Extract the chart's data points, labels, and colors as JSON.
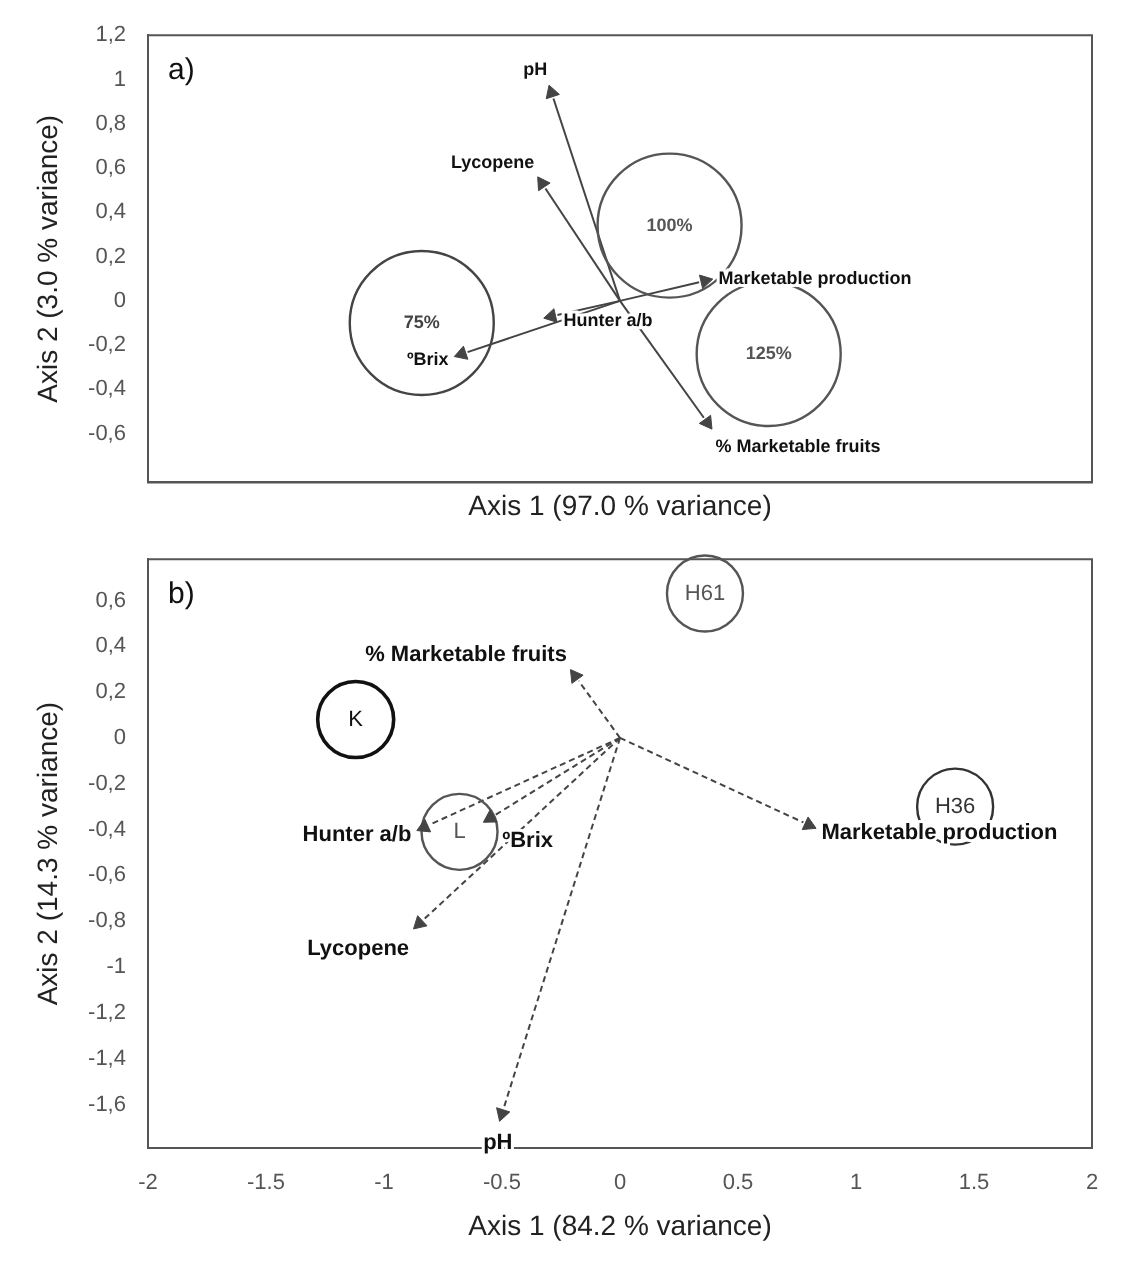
{
  "chart_data": [
    {
      "type": "scatter",
      "annotations": [
        "a)",
        {
          "text": "pH",
          "x": -0.29,
          "y": 0.94
        },
        {
          "text": "Lycopene",
          "x": -0.33,
          "y": 0.53
        },
        {
          "text": "Marketable production",
          "x": 0.36,
          "y": 0.09
        },
        {
          "text": "Hunter a/b",
          "x": -0.29,
          "y": -0.07
        },
        {
          "text": "ºBrix",
          "x": -0.67,
          "y": -0.24
        },
        {
          "text": "% Marketable fruits",
          "x": 0.37,
          "y": -0.55
        }
      ],
      "xlabel": "Axis 1 (97.0 % variance)",
      "ylabel": "Axis 2 (3.0 % variance)",
      "xlim": [
        -2,
        2
      ],
      "ylim": [
        -0.82,
        1.2
      ],
      "yticks": [
        {
          "value": 1.2,
          "label": "1,2"
        },
        1,
        {
          "value": 0.8,
          "label": "0,8"
        },
        {
          "value": 0.6,
          "label": "0,6"
        },
        {
          "value": 0.4,
          "label": "0,4"
        },
        {
          "value": 0.2,
          "label": "0,2"
        },
        0,
        {
          "value": -0.2,
          "label": "-0,2"
        },
        {
          "value": -0.4,
          "label": "-0,4"
        },
        {
          "value": -0.6,
          "label": "-0,6"
        }
      ],
      "tick_labels": "y",
      "grid": false,
      "series": [
        {
          "color": "#444444",
          "x": [
            -0.29,
            -0.33,
            0.36,
            -0.29,
            -0.67,
            0.37
          ],
          "values": [
            0.94,
            0.53,
            0.09,
            -0.07,
            -0.24,
            -0.55
          ],
          "marker": "triangle"
        },
        {
          "name": "75%",
          "color": "#444444",
          "x": [
            -0.84
          ],
          "values": [
            -0.1
          ],
          "marker": "circle"
        },
        {
          "name": "100%",
          "color": "#555555",
          "x": [
            0.21
          ],
          "values": [
            0.34
          ],
          "marker": "circle"
        },
        {
          "name": "125%",
          "color": "#555555",
          "x": [
            0.63
          ],
          "values": [
            -0.24
          ],
          "marker": "circle"
        }
      ]
    },
    {
      "type": "scatter",
      "annotations": [
        "b)",
        {
          "text": "% Marketable fruits",
          "x": -0.19,
          "y": 0.27
        },
        {
          "text": "Hunter a/b",
          "x": -0.83,
          "y": -0.39
        },
        {
          "text": "ºBrix",
          "x": -0.55,
          "y": -0.35
        },
        {
          "text": "Lycopene",
          "x": -0.85,
          "y": -0.81
        },
        {
          "text": "pH",
          "x": -0.5,
          "y": -1.64
        },
        {
          "text": "Marketable production",
          "x": 0.8,
          "y": -0.38
        }
      ],
      "xlabel": "Axis 1 (84.2 % variance)",
      "ylabel": "Axis 2 (14.3 % variance)",
      "xlim": [
        -2,
        2
      ],
      "xticks": [
        -2,
        -1.5,
        -1,
        -0.5,
        0,
        0.5,
        1,
        1.5,
        2
      ],
      "ylim": [
        -1.79,
        0.78
      ],
      "yticks": [
        {
          "value": 0.6,
          "label": "0,6"
        },
        {
          "value": 0.4,
          "label": "0,4"
        },
        {
          "value": 0.2,
          "label": "0,2"
        },
        0,
        {
          "value": -0.2,
          "label": "-0,2"
        },
        {
          "value": -0.4,
          "label": "-0,4"
        },
        {
          "value": -0.6,
          "label": "-0,6"
        },
        {
          "value": -0.8,
          "label": "-0,8"
        },
        -1,
        {
          "value": -1.2,
          "label": "-1,2"
        },
        {
          "value": -1.4,
          "label": "-1,4"
        },
        {
          "value": -1.6,
          "label": "-1,6"
        }
      ],
      "grid": false,
      "series": [
        {
          "color": "#444444",
          "x": [
            -0.19,
            -0.83,
            -0.55,
            -0.85,
            -0.5,
            0.8
          ],
          "values": [
            0.27,
            -0.39,
            -0.35,
            -0.81,
            -1.64,
            -0.38
          ],
          "marker": "triangle"
        },
        {
          "name": "H61",
          "color": "#555555",
          "x": [
            0.36
          ],
          "values": [
            0.63
          ],
          "marker": "circle"
        },
        {
          "name": "K",
          "color": "#111111",
          "x": [
            -1.12
          ],
          "values": [
            0.08
          ],
          "marker": "circle"
        },
        {
          "name": "L",
          "color": "#555555",
          "x": [
            -0.68
          ],
          "values": [
            -0.41
          ],
          "marker": "circle"
        },
        {
          "name": "H36",
          "color": "#333333",
          "x": [
            1.42
          ],
          "values": [
            -0.3
          ],
          "marker": "circle"
        }
      ]
    }
  ]
}
